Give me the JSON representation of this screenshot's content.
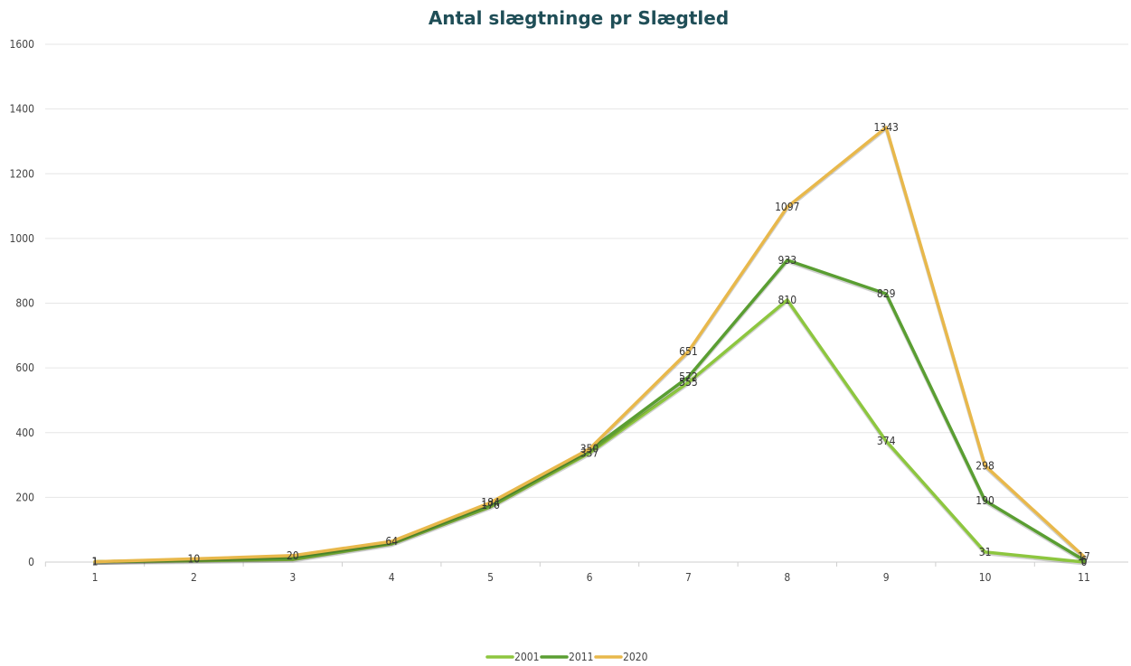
{
  "chart_data": {
    "type": "line",
    "title": "Antal slægtninge pr Slægtled",
    "xlabel": "",
    "ylabel": "",
    "categories": [
      "1",
      "2",
      "3",
      "4",
      "5",
      "6",
      "7",
      "8",
      "9",
      "10",
      "11"
    ],
    "ylim": [
      0,
      1600
    ],
    "yticks": [
      "0",
      "200",
      "400",
      "600",
      "800",
      "1000",
      "1200",
      "1400",
      "1600"
    ],
    "grid": true,
    "legend_position": "bottom",
    "series": [
      {
        "name": "2001",
        "color": "#8dc63f",
        "values": [
          1,
          4,
          8,
          56,
          171,
          337,
          555,
          810,
          374,
          31,
          0
        ],
        "labels": [
          "1",
          "",
          "",
          "",
          "",
          "337",
          "555",
          "810",
          "374",
          "31",
          "0"
        ]
      },
      {
        "name": "2011",
        "color": "#5a9e32",
        "values": [
          1,
          7,
          12,
          60,
          176,
          345,
          572,
          933,
          829,
          190,
          6
        ],
        "labels": [
          "1",
          "",
          "",
          "",
          "176",
          "",
          "572",
          "933",
          "829",
          "190",
          "6"
        ]
      },
      {
        "name": "2020",
        "color": "#e8b84b",
        "values": [
          1,
          10,
          20,
          64,
          184,
          350,
          651,
          1097,
          1343,
          298,
          17
        ],
        "labels": [
          "1",
          "10",
          "20",
          "64",
          "184",
          "350",
          "651",
          "1097",
          "1343",
          "298",
          "17"
        ]
      }
    ]
  }
}
